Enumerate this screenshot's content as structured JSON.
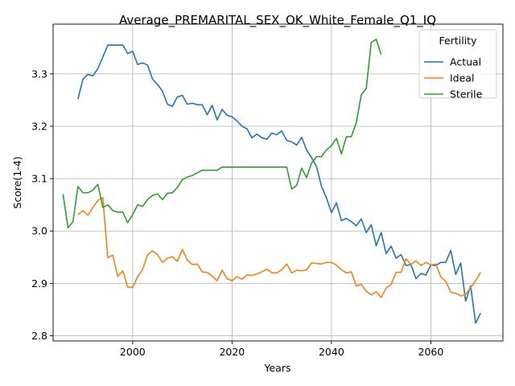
{
  "chart_data": {
    "type": "line",
    "title": "Average_PREMARITAL_SEX_OK_White_Female_Q1_IQ",
    "xlabel": "Years",
    "ylabel": "Score(1-4)",
    "xlim": [
      1984.0,
      2074.5
    ],
    "ylim": [
      2.79,
      3.395
    ],
    "xticks": [
      2000,
      2020,
      2040,
      2060
    ],
    "yticks": [
      2.8,
      2.9,
      3.0,
      3.1,
      3.2,
      3.3
    ],
    "grid": true,
    "legend": {
      "title": "Fertility",
      "placement": "upper right"
    },
    "series": [
      {
        "name": "Actual",
        "color": "#1f77b4",
        "x": [
          1989,
          1990,
          1991,
          1992,
          1993,
          1994,
          1995,
          1996,
          1997,
          1998,
          1999,
          2000,
          2001,
          2002,
          2003,
          2004,
          2005,
          2006,
          2007,
          2008,
          2009,
          2010,
          2011,
          2012,
          2013,
          2014,
          2015,
          2016,
          2017,
          2018,
          2019,
          2020,
          2021,
          2022,
          2023,
          2024,
          2025,
          2026,
          2027,
          2028,
          2029,
          2030,
          2031,
          2032,
          2033,
          2034,
          2035,
          2036,
          2037,
          2038,
          2039,
          2040,
          2041,
          2042,
          2043,
          2044,
          2045,
          2046,
          2047,
          2048,
          2049,
          2050,
          2051,
          2052,
          2053,
          2054,
          2055,
          2056,
          2057,
          2058,
          2059,
          2060,
          2061,
          2062,
          2063,
          2064,
          2065,
          2066,
          2067,
          2068,
          2069,
          2070
        ],
        "values": [
          3.252,
          3.29,
          3.299,
          3.296,
          3.31,
          3.332,
          3.355,
          3.355,
          3.355,
          3.355,
          3.339,
          3.343,
          3.318,
          3.321,
          3.317,
          3.29,
          3.28,
          3.267,
          3.242,
          3.238,
          3.256,
          3.259,
          3.242,
          3.244,
          3.241,
          3.241,
          3.222,
          3.24,
          3.212,
          3.232,
          3.221,
          3.218,
          3.21,
          3.2,
          3.195,
          3.178,
          3.185,
          3.178,
          3.175,
          3.187,
          3.184,
          3.191,
          3.173,
          3.17,
          3.164,
          3.179,
          3.155,
          3.14,
          3.123,
          3.085,
          3.063,
          3.035,
          3.054,
          3.02,
          3.024,
          3.018,
          3.01,
          3.023,
          2.997,
          3.012,
          2.972,
          2.997,
          2.957,
          2.971,
          2.948,
          2.955,
          2.934,
          2.936,
          2.909,
          2.919,
          2.916,
          2.935,
          2.934,
          2.94,
          2.94,
          2.963,
          2.917,
          2.939,
          2.866,
          2.895,
          2.824,
          2.843
        ]
      },
      {
        "name": "Ideal",
        "color": "#ff7f0e",
        "x": [
          1989,
          1990,
          1991,
          1992,
          1993,
          1994,
          1995,
          1996,
          1997,
          1998,
          1999,
          2000,
          2001,
          2002,
          2003,
          2004,
          2005,
          2006,
          2007,
          2008,
          2009,
          2010,
          2011,
          2012,
          2013,
          2014,
          2015,
          2016,
          2017,
          2018,
          2019,
          2020,
          2021,
          2022,
          2023,
          2024,
          2025,
          2026,
          2027,
          2028,
          2029,
          2030,
          2031,
          2032,
          2033,
          2034,
          2035,
          2036,
          2037,
          2038,
          2039,
          2040,
          2041,
          2042,
          2043,
          2044,
          2045,
          2046,
          2047,
          2048,
          2049,
          2050,
          2051,
          2052,
          2053,
          2054,
          2055,
          2056,
          2057,
          2058,
          2059,
          2060,
          2061,
          2062,
          2063,
          2064,
          2065,
          2066,
          2067,
          2068,
          2069,
          2070
        ],
        "values": [
          3.031,
          3.039,
          3.03,
          3.045,
          3.058,
          3.064,
          2.949,
          2.954,
          2.913,
          2.924,
          2.893,
          2.892,
          2.913,
          2.926,
          2.955,
          2.962,
          2.955,
          2.94,
          2.948,
          2.951,
          2.942,
          2.965,
          2.944,
          2.936,
          2.937,
          2.922,
          2.921,
          2.914,
          2.905,
          2.925,
          2.909,
          2.905,
          2.913,
          2.908,
          2.916,
          2.915,
          2.918,
          2.922,
          2.927,
          2.92,
          2.92,
          2.926,
          2.937,
          2.92,
          2.925,
          2.924,
          2.926,
          2.939,
          2.938,
          2.937,
          2.94,
          2.94,
          2.935,
          2.926,
          2.92,
          2.922,
          2.895,
          2.898,
          2.885,
          2.878,
          2.884,
          2.873,
          2.891,
          2.898,
          2.921,
          2.921,
          2.947,
          2.936,
          2.943,
          2.934,
          2.94,
          2.935,
          2.937,
          2.912,
          2.904,
          2.883,
          2.881,
          2.876,
          2.879,
          2.892,
          2.905,
          2.921
        ]
      },
      {
        "name": "Sterile",
        "color": "#2ca02c",
        "x": [
          1986,
          1987,
          1988,
          1989,
          1990,
          1991,
          1992,
          1993,
          1994,
          1995,
          1996,
          1997,
          1998,
          1999,
          2000,
          2001,
          2002,
          2003,
          2004,
          2005,
          2006,
          2007,
          2008,
          2009,
          2010,
          2011,
          2012,
          2013,
          2014,
          2015,
          2016,
          2017,
          2018,
          2019,
          2020,
          2021,
          2022,
          2023,
          2024,
          2025,
          2026,
          2027,
          2028,
          2029,
          2030,
          2031,
          2032,
          2033,
          2034,
          2035,
          2036,
          2037,
          2038,
          2039,
          2040,
          2041,
          2042,
          2043,
          2044,
          2045,
          2046,
          2047,
          2048,
          2049,
          2050
        ],
        "values": [
          3.07,
          3.006,
          3.018,
          3.085,
          3.073,
          3.073,
          3.078,
          3.089,
          3.045,
          3.05,
          3.039,
          3.036,
          3.036,
          3.016,
          3.031,
          3.05,
          3.047,
          3.06,
          3.068,
          3.071,
          3.06,
          3.072,
          3.073,
          3.083,
          3.098,
          3.103,
          3.106,
          3.111,
          3.116,
          3.116,
          3.116,
          3.116,
          3.122,
          3.122,
          3.122,
          3.122,
          3.122,
          3.122,
          3.122,
          3.122,
          3.122,
          3.122,
          3.122,
          3.122,
          3.122,
          3.122,
          3.08,
          3.087,
          3.12,
          3.102,
          3.13,
          3.142,
          3.142,
          3.155,
          3.163,
          3.177,
          3.147,
          3.18,
          3.18,
          3.207,
          3.26,
          3.272,
          3.36,
          3.366,
          3.337
        ]
      }
    ]
  }
}
